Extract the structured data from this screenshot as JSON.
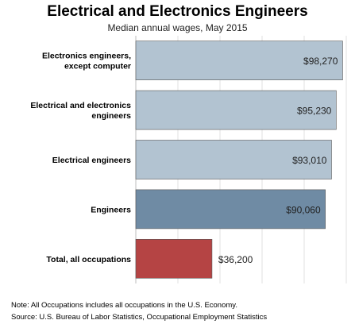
{
  "chart_data": {
    "type": "bar",
    "orientation": "horizontal",
    "title": "Electrical and Electronics Engineers",
    "subtitle": "Median annual wages, May 2015",
    "categories": [
      [
        "Electronics engineers,",
        "except computer"
      ],
      [
        "Electrical and electronics",
        "engineers"
      ],
      [
        "Electrical engineers"
      ],
      [
        "Engineers"
      ],
      [
        "Total, all occupations"
      ]
    ],
    "values": [
      98270,
      95230,
      93010,
      90060,
      36200
    ],
    "value_labels": [
      "$98,270",
      "$95,230",
      "$93,010",
      "$90,060",
      "$36,200"
    ],
    "bar_colors": [
      "#b2c3d1",
      "#b2c3d1",
      "#b2c3d1",
      "#6f8ba4",
      "#b54444"
    ],
    "xlim": [
      0,
      100000
    ],
    "grid": true,
    "legend": "none"
  },
  "footnotes": {
    "note": "Note: All Occupations includes all occupations in the U.S. Economy.",
    "source": "Source: U.S. Bureau of Labor Statistics, Occupational Employment Statistics"
  }
}
